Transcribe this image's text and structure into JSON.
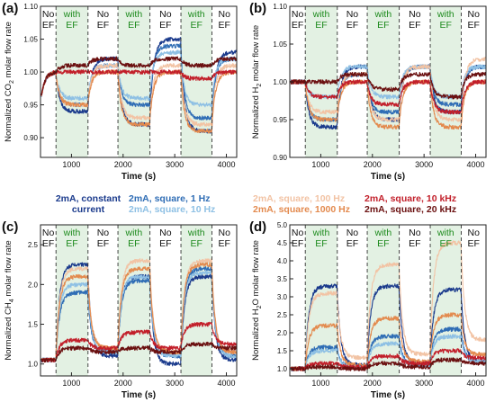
{
  "figure": {
    "legend": [
      {
        "name": "2mA, constant current",
        "line1": "2mA, constant",
        "line2": "current",
        "color": "#1a3a8c"
      },
      {
        "name": "2mA, square, 1 Hz",
        "line1": "2mA, square, 1 Hz",
        "line2": "",
        "color": "#2f6db5"
      },
      {
        "name": "2mA, square, 10 Hz",
        "line1": "",
        "line2": "2mA, square, 10 Hz",
        "color": "#8ec0e4"
      },
      {
        "name": "2mA, square, 100 Hz",
        "line1": "2mA, square, 100 Hz",
        "line2": "",
        "color": "#f2c3a4"
      },
      {
        "name": "2mA, square, 1000 Hz",
        "line1": "",
        "line2": "2mA, square, 1000 Hz",
        "color": "#e38a4e"
      },
      {
        "name": "2mA, square, 10 kHz",
        "line1": "2mA, square, 10 kHz",
        "line2": "",
        "color": "#c21f2a"
      },
      {
        "name": "2mA, square, 20 kHz",
        "line1": "",
        "line2": "2mA, square, 20 kHz",
        "color": "#6b1010"
      }
    ]
  },
  "chart_data": [
    {
      "panel": "(a)",
      "type": "line",
      "xlabel": "Time (s)",
      "ylabel": "Normalized CO2 molar flow rate",
      "ylabel_main": "Normalized CO",
      "ylabel_sub": "2",
      "ylabel_tail": " molar flow rate",
      "xlim": [
        400,
        4200
      ],
      "ylim": [
        0.87,
        1.1
      ],
      "xticks": [
        1000,
        2000,
        3000,
        4000
      ],
      "yticks": [
        0.9,
        0.95,
        1.0,
        1.05,
        1.1
      ],
      "ytick_labels": [
        "0.90",
        "0.95",
        "1.00",
        "1.05",
        "1.10"
      ],
      "region_bounds": [
        400,
        700,
        1320,
        1900,
        2520,
        3120,
        3720,
        4200
      ],
      "region_labels": [
        [
          "No",
          "EF"
        ],
        [
          "with",
          "EF"
        ],
        [
          "No",
          "EF"
        ],
        [
          "with",
          "EF"
        ],
        [
          "No",
          "EF"
        ],
        [
          "with",
          "EF"
        ],
        [
          "No",
          "EF"
        ]
      ],
      "start_x": 420,
      "start_y": 0.96,
      "baseline": 1.0,
      "series": [
        {
          "name": "2mA, constant current",
          "on": [
            0.94,
            0.92,
            0.91
          ],
          "off": [
            1.02,
            1.05,
            1.03
          ]
        },
        {
          "name": "2mA, square, 1 Hz",
          "on": [
            0.95,
            0.95,
            0.93
          ],
          "off": [
            1.01,
            1.04,
            1.02
          ]
        },
        {
          "name": "2mA, square, 10 Hz",
          "on": [
            0.96,
            0.96,
            0.95
          ],
          "off": [
            1.01,
            1.03,
            1.02
          ]
        },
        {
          "name": "2mA, square, 100 Hz",
          "on": [
            0.95,
            0.93,
            0.92
          ],
          "off": [
            1.01,
            1.01,
            1.01
          ]
        },
        {
          "name": "2mA, square, 1000 Hz",
          "on": [
            0.95,
            0.92,
            0.91
          ],
          "off": [
            1.0,
            1.0,
            1.0
          ]
        },
        {
          "name": "2mA, square, 10 kHz",
          "on": [
            1.0,
            1.0,
            0.99
          ],
          "off": [
            1.0,
            1.0,
            1.0
          ]
        },
        {
          "name": "2mA, square, 20 kHz",
          "on": [
            1.01,
            1.01,
            1.01
          ],
          "off": [
            1.02,
            1.02,
            1.02
          ]
        }
      ]
    },
    {
      "panel": "(b)",
      "type": "line",
      "xlabel": "Time (s)",
      "ylabel": "Normalized H2 molar flow rate",
      "ylabel_main": "Normalized H",
      "ylabel_sub": "2",
      "ylabel_tail": " molar flow rate",
      "xlim": [
        400,
        4200
      ],
      "ylim": [
        0.9,
        1.1
      ],
      "xticks": [
        1000,
        2000,
        3000,
        4000
      ],
      "yticks": [
        0.9,
        0.95,
        1.0,
        1.05,
        1.1
      ],
      "ytick_labels": [
        "0.90",
        "0.95",
        "1.00",
        "1.05",
        "1.10"
      ],
      "region_bounds": [
        400,
        700,
        1320,
        1900,
        2520,
        3120,
        3720,
        4200
      ],
      "region_labels": [
        [
          "No",
          "EF"
        ],
        [
          "with",
          "EF"
        ],
        [
          "No",
          "EF"
        ],
        [
          "with",
          "EF"
        ],
        [
          "No",
          "EF"
        ],
        [
          "with",
          "EF"
        ],
        [
          "No",
          "EF"
        ]
      ],
      "start_x": 420,
      "start_y": 1.0,
      "baseline": 1.0,
      "series": [
        {
          "name": "2mA, constant current",
          "on": [
            0.94,
            0.95,
            0.96
          ],
          "off": [
            1.02,
            1.02,
            1.02
          ]
        },
        {
          "name": "2mA, square, 1 Hz",
          "on": [
            0.95,
            0.96,
            0.97
          ],
          "off": [
            1.01,
            1.02,
            1.02
          ]
        },
        {
          "name": "2mA, square, 10 Hz",
          "on": [
            0.98,
            0.98,
            0.98
          ],
          "off": [
            1.02,
            1.02,
            1.02
          ]
        },
        {
          "name": "2mA, square, 100 Hz",
          "on": [
            0.96,
            0.95,
            0.95
          ],
          "off": [
            1.01,
            1.02,
            1.03
          ]
        },
        {
          "name": "2mA, square, 1000 Hz",
          "on": [
            0.95,
            0.94,
            0.94
          ],
          "off": [
            1.0,
            1.0,
            1.0
          ]
        },
        {
          "name": "2mA, square, 10 kHz",
          "on": [
            0.98,
            0.97,
            0.96
          ],
          "off": [
            1.0,
            1.0,
            1.0
          ]
        },
        {
          "name": "2mA, square, 20 kHz",
          "on": [
            1.0,
            0.99,
            0.98
          ],
          "off": [
            1.01,
            1.01,
            1.01
          ]
        }
      ]
    },
    {
      "panel": "(c)",
      "type": "line",
      "xlabel": "Time (s)",
      "ylabel": "Normalized CH4 molar flow rate",
      "ylabel_main": "Normalized CH",
      "ylabel_sub": "4",
      "ylabel_tail": " molar flow rate",
      "xlim": [
        400,
        4200
      ],
      "ylim": [
        0.85,
        2.75
      ],
      "xticks": [
        1000,
        2000,
        3000,
        4000
      ],
      "yticks": [
        1.0,
        1.5,
        2.0,
        2.5
      ],
      "ytick_labels": [
        "1.0",
        "1.5",
        "2.0",
        "2.5"
      ],
      "region_bounds": [
        400,
        700,
        1320,
        1900,
        2520,
        3120,
        3720,
        4200
      ],
      "region_labels": [
        [
          "No",
          "EF"
        ],
        [
          "with",
          "EF"
        ],
        [
          "No",
          "EF"
        ],
        [
          "with",
          "EF"
        ],
        [
          "No",
          "EF"
        ],
        [
          "with",
          "EF"
        ],
        [
          "No",
          "EF"
        ]
      ],
      "start_x": 420,
      "start_y": 1.05,
      "baseline": 1.05,
      "series": [
        {
          "name": "2mA, constant current",
          "on": [
            2.25,
            2.1,
            2.1
          ],
          "off": [
            1.1,
            1.0,
            1.05
          ]
        },
        {
          "name": "2mA, square, 1 Hz",
          "on": [
            1.9,
            2.05,
            2.2
          ],
          "off": [
            1.15,
            1.1,
            1.1
          ]
        },
        {
          "name": "2mA, square, 10 Hz",
          "on": [
            2.0,
            2.1,
            2.15
          ],
          "off": [
            1.15,
            1.1,
            1.1
          ]
        },
        {
          "name": "2mA, square, 100 Hz",
          "on": [
            2.2,
            2.3,
            2.3
          ],
          "off": [
            1.2,
            1.15,
            1.15
          ]
        },
        {
          "name": "2mA, square, 1000 Hz",
          "on": [
            2.1,
            2.2,
            2.25
          ],
          "off": [
            1.2,
            1.15,
            1.15
          ]
        },
        {
          "name": "2mA, square, 10 kHz",
          "on": [
            1.3,
            1.4,
            1.5
          ],
          "off": [
            1.2,
            1.2,
            1.25
          ]
        },
        {
          "name": "2mA, square, 20 kHz",
          "on": [
            1.2,
            1.2,
            1.25
          ],
          "off": [
            1.15,
            1.15,
            1.2
          ]
        }
      ]
    },
    {
      "panel": "(d)",
      "type": "line",
      "xlabel": "Time (s)",
      "ylabel": "Normalized H2O molar flow rate",
      "ylabel_main": "Normalized H",
      "ylabel_sub": "2",
      "ylabel_tail": "O molar flow rate",
      "xlim": [
        400,
        4200
      ],
      "ylim": [
        0.8,
        5.0
      ],
      "xticks": [
        1000,
        2000,
        3000,
        4000
      ],
      "yticks": [
        1.0,
        1.5,
        2.0,
        2.5,
        3.0,
        3.5,
        4.0,
        4.5,
        5.0
      ],
      "ytick_labels": [
        "1.0",
        "1.5",
        "2.0",
        "2.5",
        "3.0",
        "3.5",
        "4.0",
        "4.5",
        "5.0"
      ],
      "region_bounds": [
        400,
        700,
        1320,
        1900,
        2520,
        3120,
        3720,
        4200
      ],
      "region_labels": [
        [
          "No",
          "EF"
        ],
        [
          "with",
          "EF"
        ],
        [
          "No",
          "EF"
        ],
        [
          "with",
          "EF"
        ],
        [
          "No",
          "EF"
        ],
        [
          "with",
          "EF"
        ],
        [
          "No",
          "EF"
        ]
      ],
      "start_x": 420,
      "start_y": 1.0,
      "baseline": 1.0,
      "series": [
        {
          "name": "2mA, constant current",
          "on": [
            3.3,
            3.3,
            3.2
          ],
          "off": [
            1.1,
            1.15,
            1.2
          ]
        },
        {
          "name": "2mA, square, 1 Hz",
          "on": [
            1.6,
            1.9,
            2.1
          ],
          "off": [
            1.05,
            1.1,
            1.2
          ]
        },
        {
          "name": "2mA, square, 10 Hz",
          "on": [
            1.5,
            1.7,
            1.9
          ],
          "off": [
            1.05,
            1.1,
            1.2
          ]
        },
        {
          "name": "2mA, square, 100 Hz",
          "on": [
            3.1,
            3.9,
            4.5
          ],
          "off": [
            1.3,
            1.4,
            1.8
          ]
        },
        {
          "name": "2mA, square, 1000 Hz",
          "on": [
            2.2,
            2.4,
            2.5
          ],
          "off": [
            1.1,
            1.2,
            1.4
          ]
        },
        {
          "name": "2mA, square, 10 kHz",
          "on": [
            1.15,
            1.35,
            1.5
          ],
          "off": [
            1.05,
            1.15,
            1.3
          ]
        },
        {
          "name": "2mA, square, 20 kHz",
          "on": [
            1.05,
            1.15,
            1.25
          ],
          "off": [
            1.0,
            1.05,
            1.15
          ]
        }
      ]
    }
  ]
}
